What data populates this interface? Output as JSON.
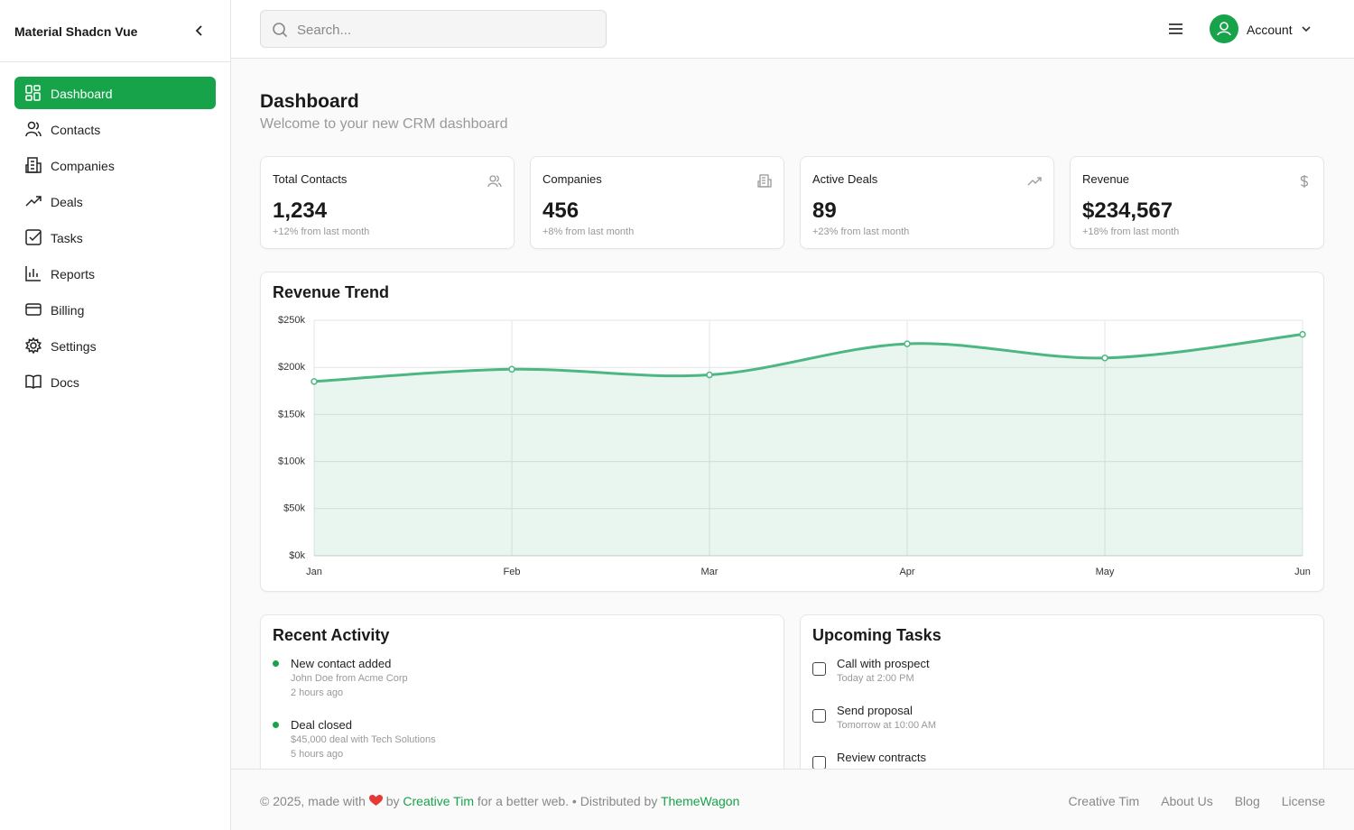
{
  "sidebar": {
    "brand": "Material Shadcn Vue",
    "nav": [
      {
        "label": "Dashboard",
        "active": true
      },
      {
        "label": "Contacts"
      },
      {
        "label": "Companies"
      },
      {
        "label": "Deals"
      },
      {
        "label": "Tasks"
      },
      {
        "label": "Reports"
      },
      {
        "label": "Billing"
      },
      {
        "label": "Settings"
      },
      {
        "label": "Docs"
      }
    ]
  },
  "header": {
    "search_placeholder": "Search...",
    "account": "Account"
  },
  "page": {
    "title": "Dashboard",
    "subtitle": "Welcome to your new CRM dashboard"
  },
  "stats": [
    {
      "label": "Total Contacts",
      "value": "1,234",
      "change": "+12% from last month"
    },
    {
      "label": "Companies",
      "value": "456",
      "change": "+8% from last month"
    },
    {
      "label": "Active Deals",
      "value": "89",
      "change": "+23% from last month"
    },
    {
      "label": "Revenue",
      "value": "$234,567",
      "change": "+18% from last month"
    }
  ],
  "chart_data": {
    "type": "area",
    "title": "Revenue Trend",
    "categories": [
      "Jan",
      "Feb",
      "Mar",
      "Apr",
      "May",
      "Jun"
    ],
    "values": [
      185000,
      198000,
      192000,
      225000,
      210000,
      235000
    ],
    "color": "#4cb782",
    "ylim": [
      0,
      250000
    ],
    "yticks": [
      {
        "value": 0,
        "label": "$0k"
      },
      {
        "value": 50000,
        "label": "$50k"
      },
      {
        "value": 100000,
        "label": "$100k"
      },
      {
        "value": 150000,
        "label": "$150k"
      },
      {
        "value": 200000,
        "label": "$200k"
      },
      {
        "value": 250000,
        "label": "$250k"
      }
    ],
    "grid": true
  },
  "activity": {
    "title": "Recent Activity",
    "items": [
      {
        "title": "New contact added",
        "detail": "John Doe from Acme Corp",
        "time": "2 hours ago"
      },
      {
        "title": "Deal closed",
        "detail": "$45,000 deal with Tech Solutions",
        "time": "5 hours ago"
      }
    ]
  },
  "tasks": {
    "title": "Upcoming Tasks",
    "items": [
      {
        "title": "Call with prospect",
        "time": "Today at 2:00 PM"
      },
      {
        "title": "Send proposal",
        "time": "Tomorrow at 10:00 AM"
      },
      {
        "title": "Review contracts"
      }
    ]
  },
  "footer": {
    "prefix": "© 2025, made with",
    "by": "by",
    "author": "Creative Tim",
    "middle": "for a better web. • Distributed by",
    "distributor": "ThemeWagon",
    "links": [
      "Creative Tim",
      "About Us",
      "Blog",
      "License"
    ]
  }
}
